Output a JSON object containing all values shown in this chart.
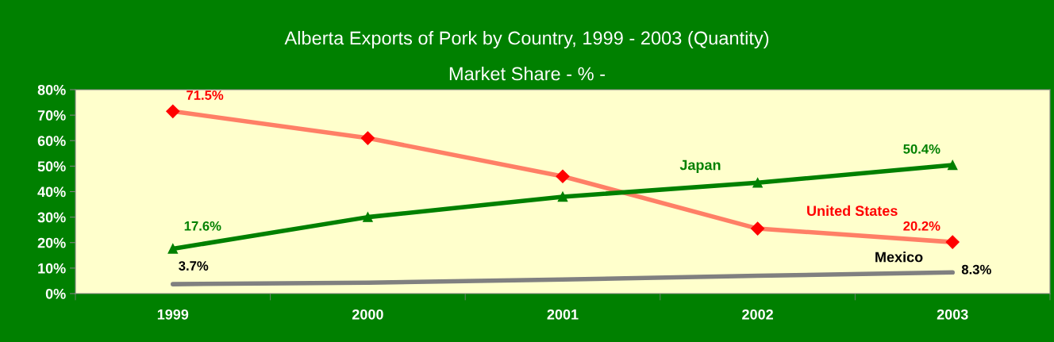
{
  "chart_data": {
    "type": "line",
    "title": "Alberta Exports of Pork by Country, 1999 - 2003 (Quantity)",
    "subtitle": "Market Share - % -",
    "categories": [
      "1999",
      "2000",
      "2001",
      "2002",
      "2003"
    ],
    "series": [
      {
        "name": "United States",
        "color": "#ff0000",
        "marker": "diamond",
        "values": [
          71.5,
          61,
          46,
          25.5,
          20.2
        ],
        "value_labels": [
          "71.5%",
          null,
          null,
          null,
          "20.2%"
        ]
      },
      {
        "name": "Japan",
        "color": "#008000",
        "marker": "triangle",
        "values": [
          17.6,
          30,
          38,
          43.5,
          50.4
        ],
        "value_labels": [
          "17.6%",
          null,
          null,
          null,
          "50.4%"
        ]
      },
      {
        "name": "Mexico",
        "color": "#808080",
        "marker": "none",
        "values": [
          3.7,
          4.3,
          5.5,
          7,
          8.3
        ],
        "value_labels": [
          "3.7%",
          null,
          null,
          null,
          "8.3%"
        ]
      }
    ],
    "ylim": [
      0,
      80
    ],
    "yticks": [
      {
        "value": 0,
        "label": "0%"
      },
      {
        "value": 10,
        "label": "10%"
      },
      {
        "value": 20,
        "label": "20%"
      },
      {
        "value": 30,
        "label": "30%"
      },
      {
        "value": 40,
        "label": "40%"
      },
      {
        "value": 50,
        "label": "50%"
      },
      {
        "value": 60,
        "label": "60%"
      },
      {
        "value": 70,
        "label": "70%"
      },
      {
        "value": 80,
        "label": "80%"
      }
    ],
    "grid": false,
    "legend": false
  }
}
